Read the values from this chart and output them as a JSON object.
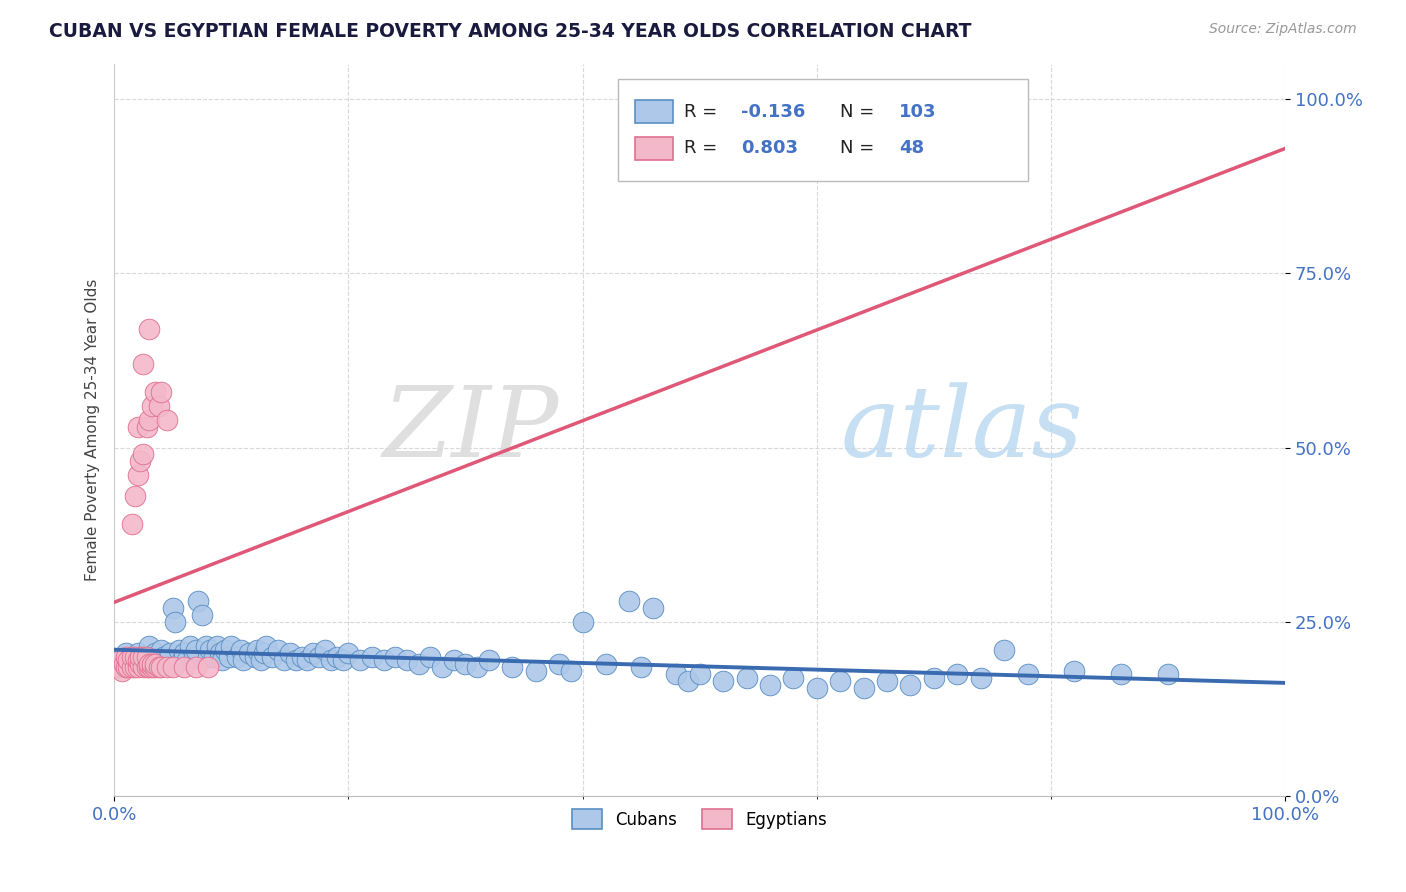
{
  "title": "CUBAN VS EGYPTIAN FEMALE POVERTY AMONG 25-34 YEAR OLDS CORRELATION CHART",
  "source": "Source: ZipAtlas.com",
  "ylabel": "Female Poverty Among 25-34 Year Olds",
  "cuban_R": -0.136,
  "cuban_N": 103,
  "egyptian_R": 0.803,
  "egyptian_N": 48,
  "cuban_color": "#adc8e8",
  "cuban_edge_color": "#5a8fc4",
  "cuban_line_color": "#3a6ab0",
  "egyptian_color": "#f4b8cb",
  "egyptian_edge_color": "#e07090",
  "egyptian_line_color": "#e05878",
  "watermark_zip": "ZIP",
  "watermark_atlas": "atlas",
  "background_color": "#ffffff",
  "grid_color": "#d0d0d0",
  "cuban_points": [
    [
      0.005,
      0.195
    ],
    [
      0.008,
      0.185
    ],
    [
      0.01,
      0.205
    ],
    [
      0.012,
      0.195
    ],
    [
      0.015,
      0.2
    ],
    [
      0.018,
      0.19
    ],
    [
      0.02,
      0.205
    ],
    [
      0.022,
      0.195
    ],
    [
      0.025,
      0.2
    ],
    [
      0.028,
      0.19
    ],
    [
      0.03,
      0.2
    ],
    [
      0.03,
      0.215
    ],
    [
      0.032,
      0.195
    ],
    [
      0.035,
      0.205
    ],
    [
      0.038,
      0.195
    ],
    [
      0.04,
      0.21
    ],
    [
      0.042,
      0.2
    ],
    [
      0.045,
      0.195
    ],
    [
      0.048,
      0.205
    ],
    [
      0.05,
      0.27
    ],
    [
      0.052,
      0.25
    ],
    [
      0.055,
      0.21
    ],
    [
      0.058,
      0.195
    ],
    [
      0.06,
      0.205
    ],
    [
      0.062,
      0.195
    ],
    [
      0.065,
      0.215
    ],
    [
      0.068,
      0.2
    ],
    [
      0.07,
      0.21
    ],
    [
      0.072,
      0.28
    ],
    [
      0.075,
      0.26
    ],
    [
      0.078,
      0.215
    ],
    [
      0.08,
      0.2
    ],
    [
      0.082,
      0.21
    ],
    [
      0.085,
      0.2
    ],
    [
      0.088,
      0.215
    ],
    [
      0.09,
      0.205
    ],
    [
      0.092,
      0.195
    ],
    [
      0.095,
      0.21
    ],
    [
      0.098,
      0.2
    ],
    [
      0.1,
      0.215
    ],
    [
      0.105,
      0.2
    ],
    [
      0.108,
      0.21
    ],
    [
      0.11,
      0.195
    ],
    [
      0.115,
      0.205
    ],
    [
      0.12,
      0.2
    ],
    [
      0.122,
      0.21
    ],
    [
      0.125,
      0.195
    ],
    [
      0.128,
      0.205
    ],
    [
      0.13,
      0.215
    ],
    [
      0.135,
      0.2
    ],
    [
      0.14,
      0.21
    ],
    [
      0.145,
      0.195
    ],
    [
      0.15,
      0.205
    ],
    [
      0.155,
      0.195
    ],
    [
      0.16,
      0.2
    ],
    [
      0.165,
      0.195
    ],
    [
      0.17,
      0.205
    ],
    [
      0.175,
      0.2
    ],
    [
      0.18,
      0.21
    ],
    [
      0.185,
      0.195
    ],
    [
      0.19,
      0.2
    ],
    [
      0.195,
      0.195
    ],
    [
      0.2,
      0.205
    ],
    [
      0.21,
      0.195
    ],
    [
      0.22,
      0.2
    ],
    [
      0.23,
      0.195
    ],
    [
      0.24,
      0.2
    ],
    [
      0.25,
      0.195
    ],
    [
      0.26,
      0.19
    ],
    [
      0.27,
      0.2
    ],
    [
      0.28,
      0.185
    ],
    [
      0.29,
      0.195
    ],
    [
      0.3,
      0.19
    ],
    [
      0.31,
      0.185
    ],
    [
      0.32,
      0.195
    ],
    [
      0.34,
      0.185
    ],
    [
      0.36,
      0.18
    ],
    [
      0.38,
      0.19
    ],
    [
      0.39,
      0.18
    ],
    [
      0.4,
      0.25
    ],
    [
      0.42,
      0.19
    ],
    [
      0.44,
      0.28
    ],
    [
      0.45,
      0.185
    ],
    [
      0.46,
      0.27
    ],
    [
      0.48,
      0.175
    ],
    [
      0.49,
      0.165
    ],
    [
      0.5,
      0.175
    ],
    [
      0.52,
      0.165
    ],
    [
      0.54,
      0.17
    ],
    [
      0.56,
      0.16
    ],
    [
      0.58,
      0.17
    ],
    [
      0.6,
      0.155
    ],
    [
      0.62,
      0.165
    ],
    [
      0.64,
      0.155
    ],
    [
      0.66,
      0.165
    ],
    [
      0.68,
      0.16
    ],
    [
      0.7,
      0.17
    ],
    [
      0.72,
      0.175
    ],
    [
      0.74,
      0.17
    ],
    [
      0.76,
      0.21
    ],
    [
      0.78,
      0.175
    ],
    [
      0.82,
      0.18
    ],
    [
      0.86,
      0.175
    ],
    [
      0.9,
      0.175
    ]
  ],
  "egyptian_points": [
    [
      0.003,
      0.185
    ],
    [
      0.005,
      0.195
    ],
    [
      0.007,
      0.18
    ],
    [
      0.008,
      0.19
    ],
    [
      0.01,
      0.185
    ],
    [
      0.01,
      0.2
    ],
    [
      0.012,
      0.185
    ],
    [
      0.012,
      0.195
    ],
    [
      0.015,
      0.185
    ],
    [
      0.015,
      0.2
    ],
    [
      0.015,
      0.39
    ],
    [
      0.018,
      0.185
    ],
    [
      0.018,
      0.2
    ],
    [
      0.018,
      0.43
    ],
    [
      0.02,
      0.185
    ],
    [
      0.02,
      0.195
    ],
    [
      0.02,
      0.46
    ],
    [
      0.02,
      0.53
    ],
    [
      0.022,
      0.19
    ],
    [
      0.022,
      0.2
    ],
    [
      0.022,
      0.48
    ],
    [
      0.025,
      0.185
    ],
    [
      0.025,
      0.2
    ],
    [
      0.025,
      0.49
    ],
    [
      0.025,
      0.62
    ],
    [
      0.028,
      0.185
    ],
    [
      0.028,
      0.2
    ],
    [
      0.028,
      0.53
    ],
    [
      0.03,
      0.185
    ],
    [
      0.03,
      0.19
    ],
    [
      0.03,
      0.54
    ],
    [
      0.03,
      0.67
    ],
    [
      0.032,
      0.185
    ],
    [
      0.032,
      0.19
    ],
    [
      0.032,
      0.56
    ],
    [
      0.035,
      0.185
    ],
    [
      0.035,
      0.19
    ],
    [
      0.035,
      0.58
    ],
    [
      0.038,
      0.185
    ],
    [
      0.038,
      0.56
    ],
    [
      0.04,
      0.185
    ],
    [
      0.04,
      0.58
    ],
    [
      0.045,
      0.185
    ],
    [
      0.045,
      0.54
    ],
    [
      0.05,
      0.185
    ],
    [
      0.06,
      0.185
    ],
    [
      0.07,
      0.185
    ],
    [
      0.08,
      0.185
    ]
  ],
  "xlim": [
    0.0,
    1.0
  ],
  "ylim": [
    0.0,
    1.05
  ],
  "yticks": [
    0.0,
    0.25,
    0.5,
    0.75,
    1.0
  ],
  "ytick_labels": [
    "0.0%",
    "25.0%",
    "50.0%",
    "75.0%",
    "100.0%"
  ]
}
